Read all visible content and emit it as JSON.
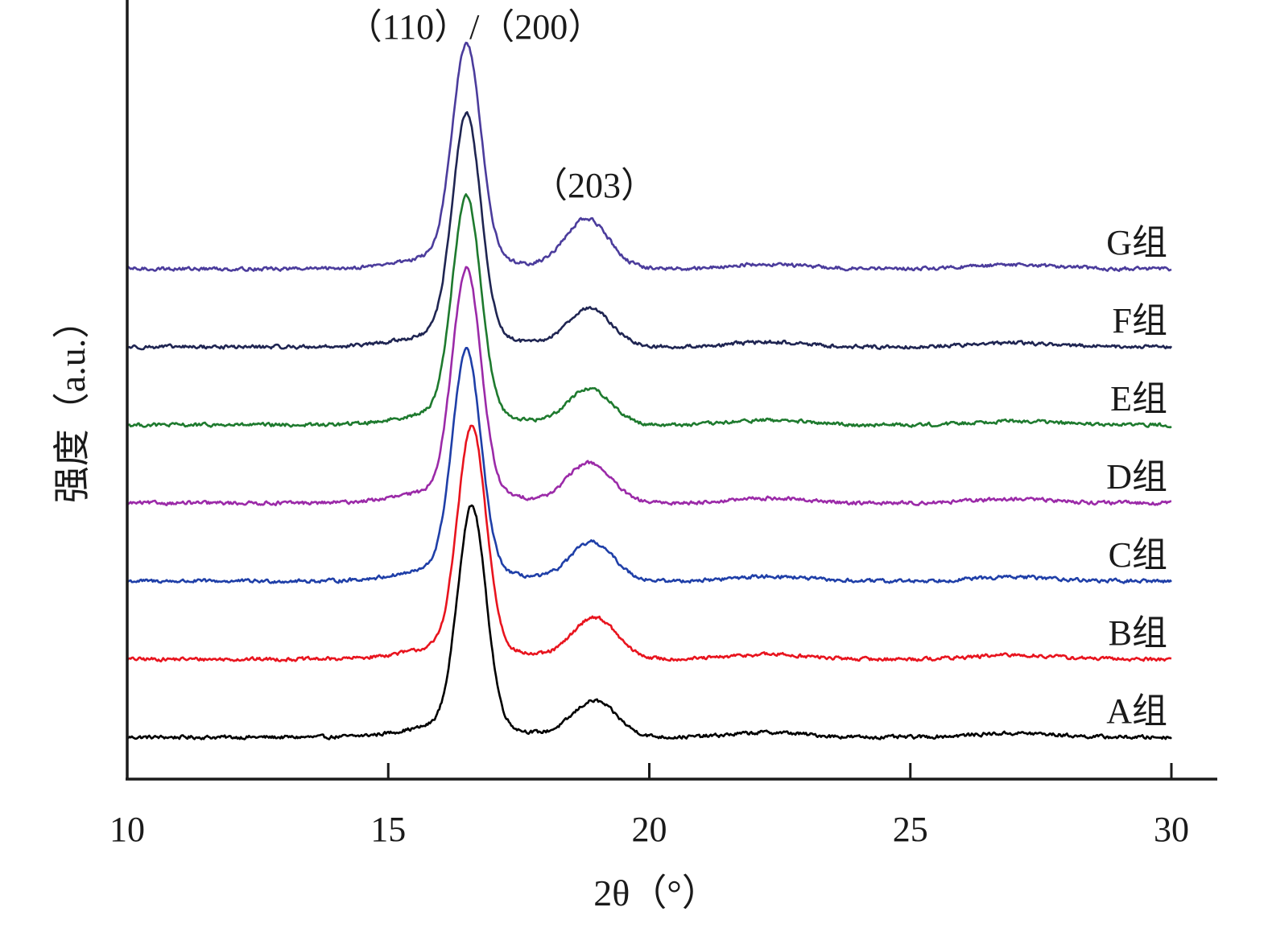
{
  "chart_data": {
    "type": "line",
    "title": "",
    "xlabel": "2θ（°）",
    "ylabel": "强度（a.u.）",
    "xlim": [
      10,
      30
    ],
    "x_ticks": [
      "10",
      "15",
      "20",
      "25",
      "30"
    ],
    "y_ticks_shown": false,
    "grid": false,
    "layout": "stacked, vertically offset traces",
    "annotations": [
      {
        "text": "（110）/（200）",
        "x": 16.5
      },
      {
        "text": "（203）",
        "x": 18.9
      }
    ],
    "peaks_2theta": [
      16.5,
      18.9
    ],
    "series": [
      {
        "name": "A组",
        "color": "#000000",
        "peak1_x": 16.6,
        "peak2_x": 18.95,
        "offset": 0,
        "h1": 270,
        "h2": 45
      },
      {
        "name": "B组",
        "color": "#e8141e",
        "peak1_x": 16.6,
        "peak2_x": 18.95,
        "offset": 97,
        "h1": 272,
        "h2": 52
      },
      {
        "name": "C组",
        "color": "#1f3fa8",
        "peak1_x": 16.5,
        "peak2_x": 18.9,
        "offset": 194,
        "h1": 270,
        "h2": 48
      },
      {
        "name": "D组",
        "color": "#9b2aa8",
        "peak1_x": 16.5,
        "peak2_x": 18.85,
        "offset": 291,
        "h1": 275,
        "h2": 50
      },
      {
        "name": "E组",
        "color": "#1e7a2e",
        "peak1_x": 16.5,
        "peak2_x": 18.85,
        "offset": 388,
        "h1": 267,
        "h2": 45
      },
      {
        "name": "F组",
        "color": "#1f2552",
        "peak1_x": 16.5,
        "peak2_x": 18.85,
        "offset": 485,
        "h1": 272,
        "h2": 48
      },
      {
        "name": "G组",
        "color": "#4b3c9c",
        "peak1_x": 16.5,
        "peak2_x": 18.8,
        "offset": 582,
        "h1": 262,
        "h2": 62
      }
    ]
  }
}
